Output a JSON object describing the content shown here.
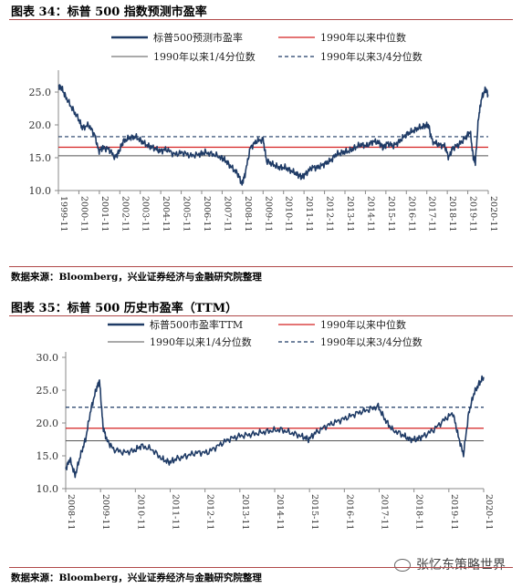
{
  "figures": [
    {
      "title": "图表 34：标普 500 指数预测市盈率",
      "source": "数据来源：Bloomberg，兴业证券经济与金融研究院整理"
    },
    {
      "title": "图表 35：标普 500 历史市盈率（TTM）",
      "source": "数据来源：Bloomberg，兴业证券经济与金融研究院整理"
    }
  ],
  "watermark": "张忆东策略世界",
  "colors": {
    "series": "#1f3b66",
    "median": "#d42020",
    "quartile1": "#555555",
    "quartile3": "#1f3b66",
    "rule": "#b04848"
  },
  "chart_data": [
    {
      "type": "line",
      "ylim": [
        10,
        27.5
      ],
      "yticks": [
        "10.0",
        "15.0",
        "20.0",
        "25.0"
      ],
      "yticks_values": [
        10,
        15,
        20,
        25
      ],
      "xlim": [
        1999.83,
        2020.83
      ],
      "xticks": [
        "1999-11",
        "2000-11",
        "2001-11",
        "2002-11",
        "2003-11",
        "2004-11",
        "2005-11",
        "2006-11",
        "2007-11",
        "2008-11",
        "2009-11",
        "2010-11",
        "2011-11",
        "2012-11",
        "2013-11",
        "2014-11",
        "2015-11",
        "2016-11",
        "2017-11",
        "2018-11",
        "2019-11",
        "2020-11"
      ],
      "xticks_values": [
        1999.83,
        2000.83,
        2001.83,
        2002.83,
        2003.83,
        2004.83,
        2005.83,
        2006.83,
        2007.83,
        2008.83,
        2009.83,
        2010.83,
        2011.83,
        2012.83,
        2013.83,
        2014.83,
        2015.83,
        2016.83,
        2017.83,
        2018.83,
        2019.83,
        2020.83
      ],
      "legend": [
        "标普500预测市盈率",
        "1990年以来中位数",
        "1990年以来1/4分位数",
        "1990年以来3/4分位数"
      ],
      "hlines": {
        "median": 16.6,
        "q1": 15.3,
        "q3": 18.2
      },
      "series": [
        {
          "name": "标普500预测市盈率",
          "x": [
            1999.83,
            2000.0,
            2000.2,
            2000.5,
            2000.8,
            2001.0,
            2001.3,
            2001.6,
            2001.8,
            2002.0,
            2002.3,
            2002.6,
            2002.8,
            2003.0,
            2003.3,
            2003.6,
            2003.9,
            2004.2,
            2004.5,
            2004.8,
            2005.1,
            2005.5,
            2005.9,
            2006.3,
            2006.7,
            2007.0,
            2007.4,
            2007.8,
            2008.0,
            2008.3,
            2008.6,
            2008.8,
            2008.95,
            2009.2,
            2009.5,
            2009.83,
            2010.0,
            2010.3,
            2010.6,
            2010.9,
            2011.2,
            2011.5,
            2011.7,
            2011.9,
            2012.2,
            2012.5,
            2012.8,
            2013.1,
            2013.4,
            2013.7,
            2014.0,
            2014.3,
            2014.6,
            2014.9,
            2015.2,
            2015.5,
            2015.7,
            2015.9,
            2016.2,
            2016.5,
            2016.8,
            2017.1,
            2017.4,
            2017.7,
            2017.9,
            2018.1,
            2018.4,
            2018.7,
            2018.9,
            2019.1,
            2019.4,
            2019.7,
            2019.95,
            2020.1,
            2020.2,
            2020.35,
            2020.5,
            2020.7,
            2020.83
          ],
          "y": [
            26.0,
            25.5,
            24.2,
            22.5,
            21.0,
            19.5,
            20.0,
            18.5,
            16.0,
            16.5,
            16.3,
            15.0,
            16.0,
            17.5,
            18.0,
            18.2,
            17.5,
            16.8,
            16.5,
            16.0,
            16.3,
            15.5,
            15.8,
            15.3,
            15.5,
            15.8,
            15.5,
            15.0,
            14.5,
            13.5,
            12.5,
            11.0,
            12.5,
            16.5,
            17.5,
            17.8,
            14.5,
            14.0,
            13.5,
            13.5,
            13.0,
            12.5,
            12.0,
            12.5,
            13.5,
            13.5,
            14.0,
            14.5,
            15.5,
            15.8,
            16.0,
            16.5,
            17.0,
            16.8,
            17.5,
            17.3,
            16.5,
            17.2,
            16.8,
            17.5,
            18.5,
            19.0,
            19.5,
            19.8,
            20.0,
            17.5,
            17.0,
            16.8,
            15.0,
            16.5,
            17.0,
            18.0,
            19.0,
            15.0,
            14.2,
            21.0,
            24.0,
            25.5,
            24.5
          ]
        }
      ]
    },
    {
      "type": "line",
      "ylim": [
        10,
        30
      ],
      "yticks": [
        "10.0",
        "15.0",
        "20.0",
        "25.0",
        "30.0"
      ],
      "yticks_values": [
        10,
        15,
        20,
        25,
        30
      ],
      "xlim": [
        2008.83,
        2020.83
      ],
      "xticks": [
        "2008-11",
        "2009-11",
        "2010-11",
        "2011-11",
        "2012-11",
        "2013-11",
        "2014-11",
        "2015-11",
        "2016-11",
        "2017-11",
        "2018-11",
        "2019-11",
        "2020-11"
      ],
      "xticks_values": [
        2008.83,
        2009.83,
        2010.83,
        2011.83,
        2012.83,
        2013.83,
        2014.83,
        2015.83,
        2016.83,
        2017.83,
        2018.83,
        2019.83,
        2020.83
      ],
      "legend": [
        "标普500市盈率TTM",
        "1990年以来中位数",
        "1990年以来1/4分位数",
        "1990年以来3/4分位数"
      ],
      "hlines": {
        "median": 19.2,
        "q1": 17.3,
        "q3": 22.4
      },
      "series": [
        {
          "name": "标普500市盈率TTM",
          "x": [
            2008.83,
            2008.95,
            2009.1,
            2009.25,
            2009.4,
            2009.55,
            2009.7,
            2009.8,
            2009.9,
            2010.0,
            2010.2,
            2010.5,
            2010.8,
            2011.0,
            2011.3,
            2011.6,
            2011.8,
            2012.0,
            2012.3,
            2012.6,
            2012.9,
            2013.2,
            2013.5,
            2013.8,
            2014.1,
            2014.4,
            2014.7,
            2015.0,
            2015.3,
            2015.6,
            2015.8,
            2016.0,
            2016.3,
            2016.6,
            2016.9,
            2017.2,
            2017.5,
            2017.8,
            2018.0,
            2018.2,
            2018.5,
            2018.7,
            2018.9,
            2019.1,
            2019.4,
            2019.7,
            2019.95,
            2020.1,
            2020.25,
            2020.4,
            2020.55,
            2020.7,
            2020.83
          ],
          "y": [
            13.0,
            14.5,
            12.0,
            15.0,
            17.5,
            22.0,
            25.0,
            26.5,
            19.5,
            17.5,
            16.0,
            15.5,
            15.8,
            16.5,
            16.0,
            14.5,
            14.0,
            14.5,
            15.0,
            15.5,
            15.5,
            16.5,
            17.5,
            18.0,
            18.2,
            18.5,
            18.8,
            19.0,
            18.5,
            18.0,
            17.5,
            18.5,
            19.5,
            20.2,
            20.8,
            21.5,
            22.0,
            22.5,
            20.5,
            19.0,
            18.2,
            17.5,
            17.5,
            18.0,
            19.0,
            20.5,
            21.5,
            18.0,
            15.2,
            21.5,
            24.5,
            26.0,
            27.0
          ]
        }
      ]
    }
  ]
}
